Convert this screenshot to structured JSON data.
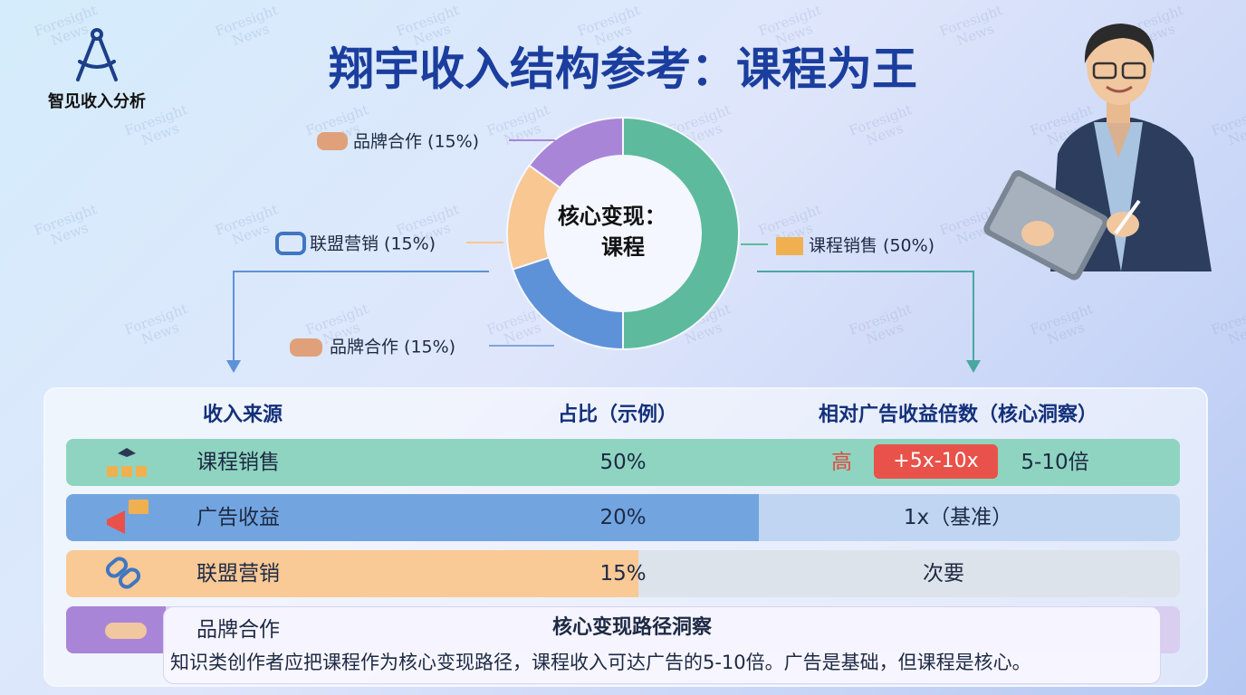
{
  "logo": "智见收入分析",
  "title": "翔宇收入结构参考：课程为王",
  "watermark": [
    "Foresight",
    "News"
  ],
  "chart_data": {
    "type": "donut",
    "values": [
      50,
      20,
      15,
      15
    ],
    "colors": [
      "#5dba9c",
      "#5e92d8",
      "#f8c792",
      "#a985d8"
    ],
    "center_label": [
      "核心变现：",
      "课程"
    ],
    "annotations": [
      "品牌合作 (15%)",
      "联盟营销 (15%)",
      "品牌合作 (15%)",
      "课程销售 (50%)"
    ]
  },
  "table": {
    "header": [
      "收入来源",
      "占比（示例）",
      "相对广告收益倍数（核心洞察）"
    ],
    "rows": [
      [
        "课程销售",
        "50%",
        [
          "高",
          "+5x-10x",
          "5-10倍"
        ]
      ],
      [
        "广告收益",
        "20%",
        "1x（基准）"
      ],
      [
        "联盟营销",
        "15%",
        "次要"
      ],
      [
        "品牌合作"
      ]
    ]
  },
  "insight": {
    "title": "核心变现路径洞察",
    "text": "知识类创作者应把课程作为核心变现路径，课程收入可达广告的5-10倍。广告是基础，但课程是核心。"
  }
}
